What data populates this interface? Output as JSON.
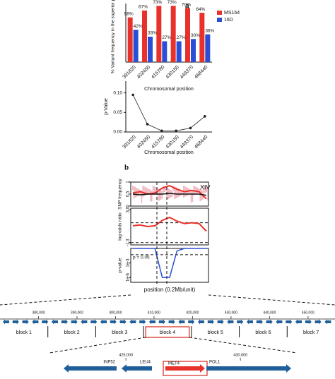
{
  "chart_data": [
    {
      "type": "bar",
      "panel": "a",
      "ylabel": "% Variant frequency in the superior pool",
      "xlabel": "Chromosomal position",
      "categories": [
        "391820",
        "402450",
        "415780",
        "430150",
        "449370",
        "468440"
      ],
      "series": [
        {
          "name": "MS164",
          "color": "#e8312a",
          "values": [
            58,
            67,
            73,
            73,
            70,
            64
          ],
          "value_labels": [
            "58%",
            "67%",
            "73%",
            "73%",
            "70%",
            "64%"
          ]
        },
        {
          "name": "16D",
          "color": "#2a4fd6",
          "values": [
            42,
            33,
            27,
            27,
            30,
            36
          ],
          "value_labels": [
            "42%",
            "33%",
            "27%",
            "27%",
            "30%",
            "36%"
          ]
        }
      ],
      "ylim": [
        0,
        76
      ],
      "legend": "right"
    },
    {
      "type": "line",
      "ylabel": "p-Value",
      "xlabel": "Chromosomal position",
      "categories": [
        "391820",
        "402450",
        "415780",
        "430150",
        "449370",
        "468440"
      ],
      "values": [
        0.095,
        0.02,
        0.003,
        0.003,
        0.01,
        0.04
      ],
      "color": "#222222",
      "ylim": [
        0,
        0.13
      ],
      "yticks": [
        {
          "value": 0,
          "label": "0.00"
        },
        {
          "value": 0.05,
          "label": "0.05"
        },
        {
          "value": 0.1,
          "label": "0.10"
        }
      ]
    },
    {
      "type": "trace",
      "panel": "b",
      "ylabel": "SNP frequency",
      "annotation": "XIV",
      "series": [
        {
          "color": "#e8312a",
          "values": [
            0.55,
            0.6,
            0.5,
            0.55,
            0.75,
            0.85,
            0.7,
            0.6,
            0.65,
            0.6,
            0.3
          ]
        },
        {
          "color": "#111111",
          "values": [
            0.5,
            0.47,
            0.5,
            0.5,
            0.5,
            0.53,
            0.5,
            0.5,
            0.5,
            0.5,
            0.45
          ]
        }
      ],
      "ylim": [
        0,
        1
      ],
      "yticks": [
        0,
        0.5,
        1
      ]
    },
    {
      "type": "trace",
      "ylabel": "log-odds ratio",
      "series": [
        {
          "color": "#e8312a",
          "values": [
            0.9,
            1.0,
            0.8,
            0.9,
            1.6,
            2.0,
            1.5,
            1.2,
            1.3,
            1.2,
            0.2
          ]
        }
      ],
      "thresholds": [
        1.3,
        -1.3
      ],
      "ylim": [
        -1.6,
        3.2
      ],
      "yticks": [
        {
          "value": 3,
          "label": "3.0"
        },
        -1.3
      ]
    },
    {
      "type": "trace",
      "ylabel": "p-value",
      "annotation": "p = 0.05",
      "log_scale": true,
      "series": [
        {
          "color": "#2a4fd6",
          "values": [
            1,
            1,
            1,
            1,
            1e-06,
            1e-06,
            0.3,
            1,
            1,
            1,
            1
          ]
        }
      ],
      "thresholds": [
        0.05
      ],
      "ylim": [
        1e-07,
        1
      ],
      "yticks": [
        {
          "value": 0.001,
          "label": "1e-3"
        },
        {
          "value": 1e-06,
          "label": "1e-6"
        }
      ],
      "xlabel": "position (0.2Mb/unit)"
    },
    {
      "type": "track",
      "xlim": [
        370000,
        457000
      ],
      "xticks": [
        {
          "value": 380000,
          "label": "380,000"
        },
        {
          "value": 390000,
          "label": "390,000"
        },
        {
          "value": 400000,
          "label": "400,000"
        },
        {
          "value": 410000,
          "label": "410,000"
        },
        {
          "value": 420000,
          "label": "420,000"
        },
        {
          "value": 430000,
          "label": "430,000"
        },
        {
          "value": 440000,
          "label": "440,000"
        },
        {
          "value": 450000,
          "label": "450,000"
        }
      ],
      "blocks": [
        "block 1",
        "block 2",
        "block 3",
        "block 4",
        "block 5",
        "block 6",
        "block 7"
      ]
    },
    {
      "type": "genes",
      "xlim": [
        419500,
        434130
      ],
      "xticks": [
        {
          "value": 425000,
          "label": "425,000"
        },
        {
          "value": 430000,
          "label": "430,000"
        }
      ],
      "genes": [
        "INP52",
        "LEU4",
        "MET4",
        "POL1"
      ]
    }
  ]
}
